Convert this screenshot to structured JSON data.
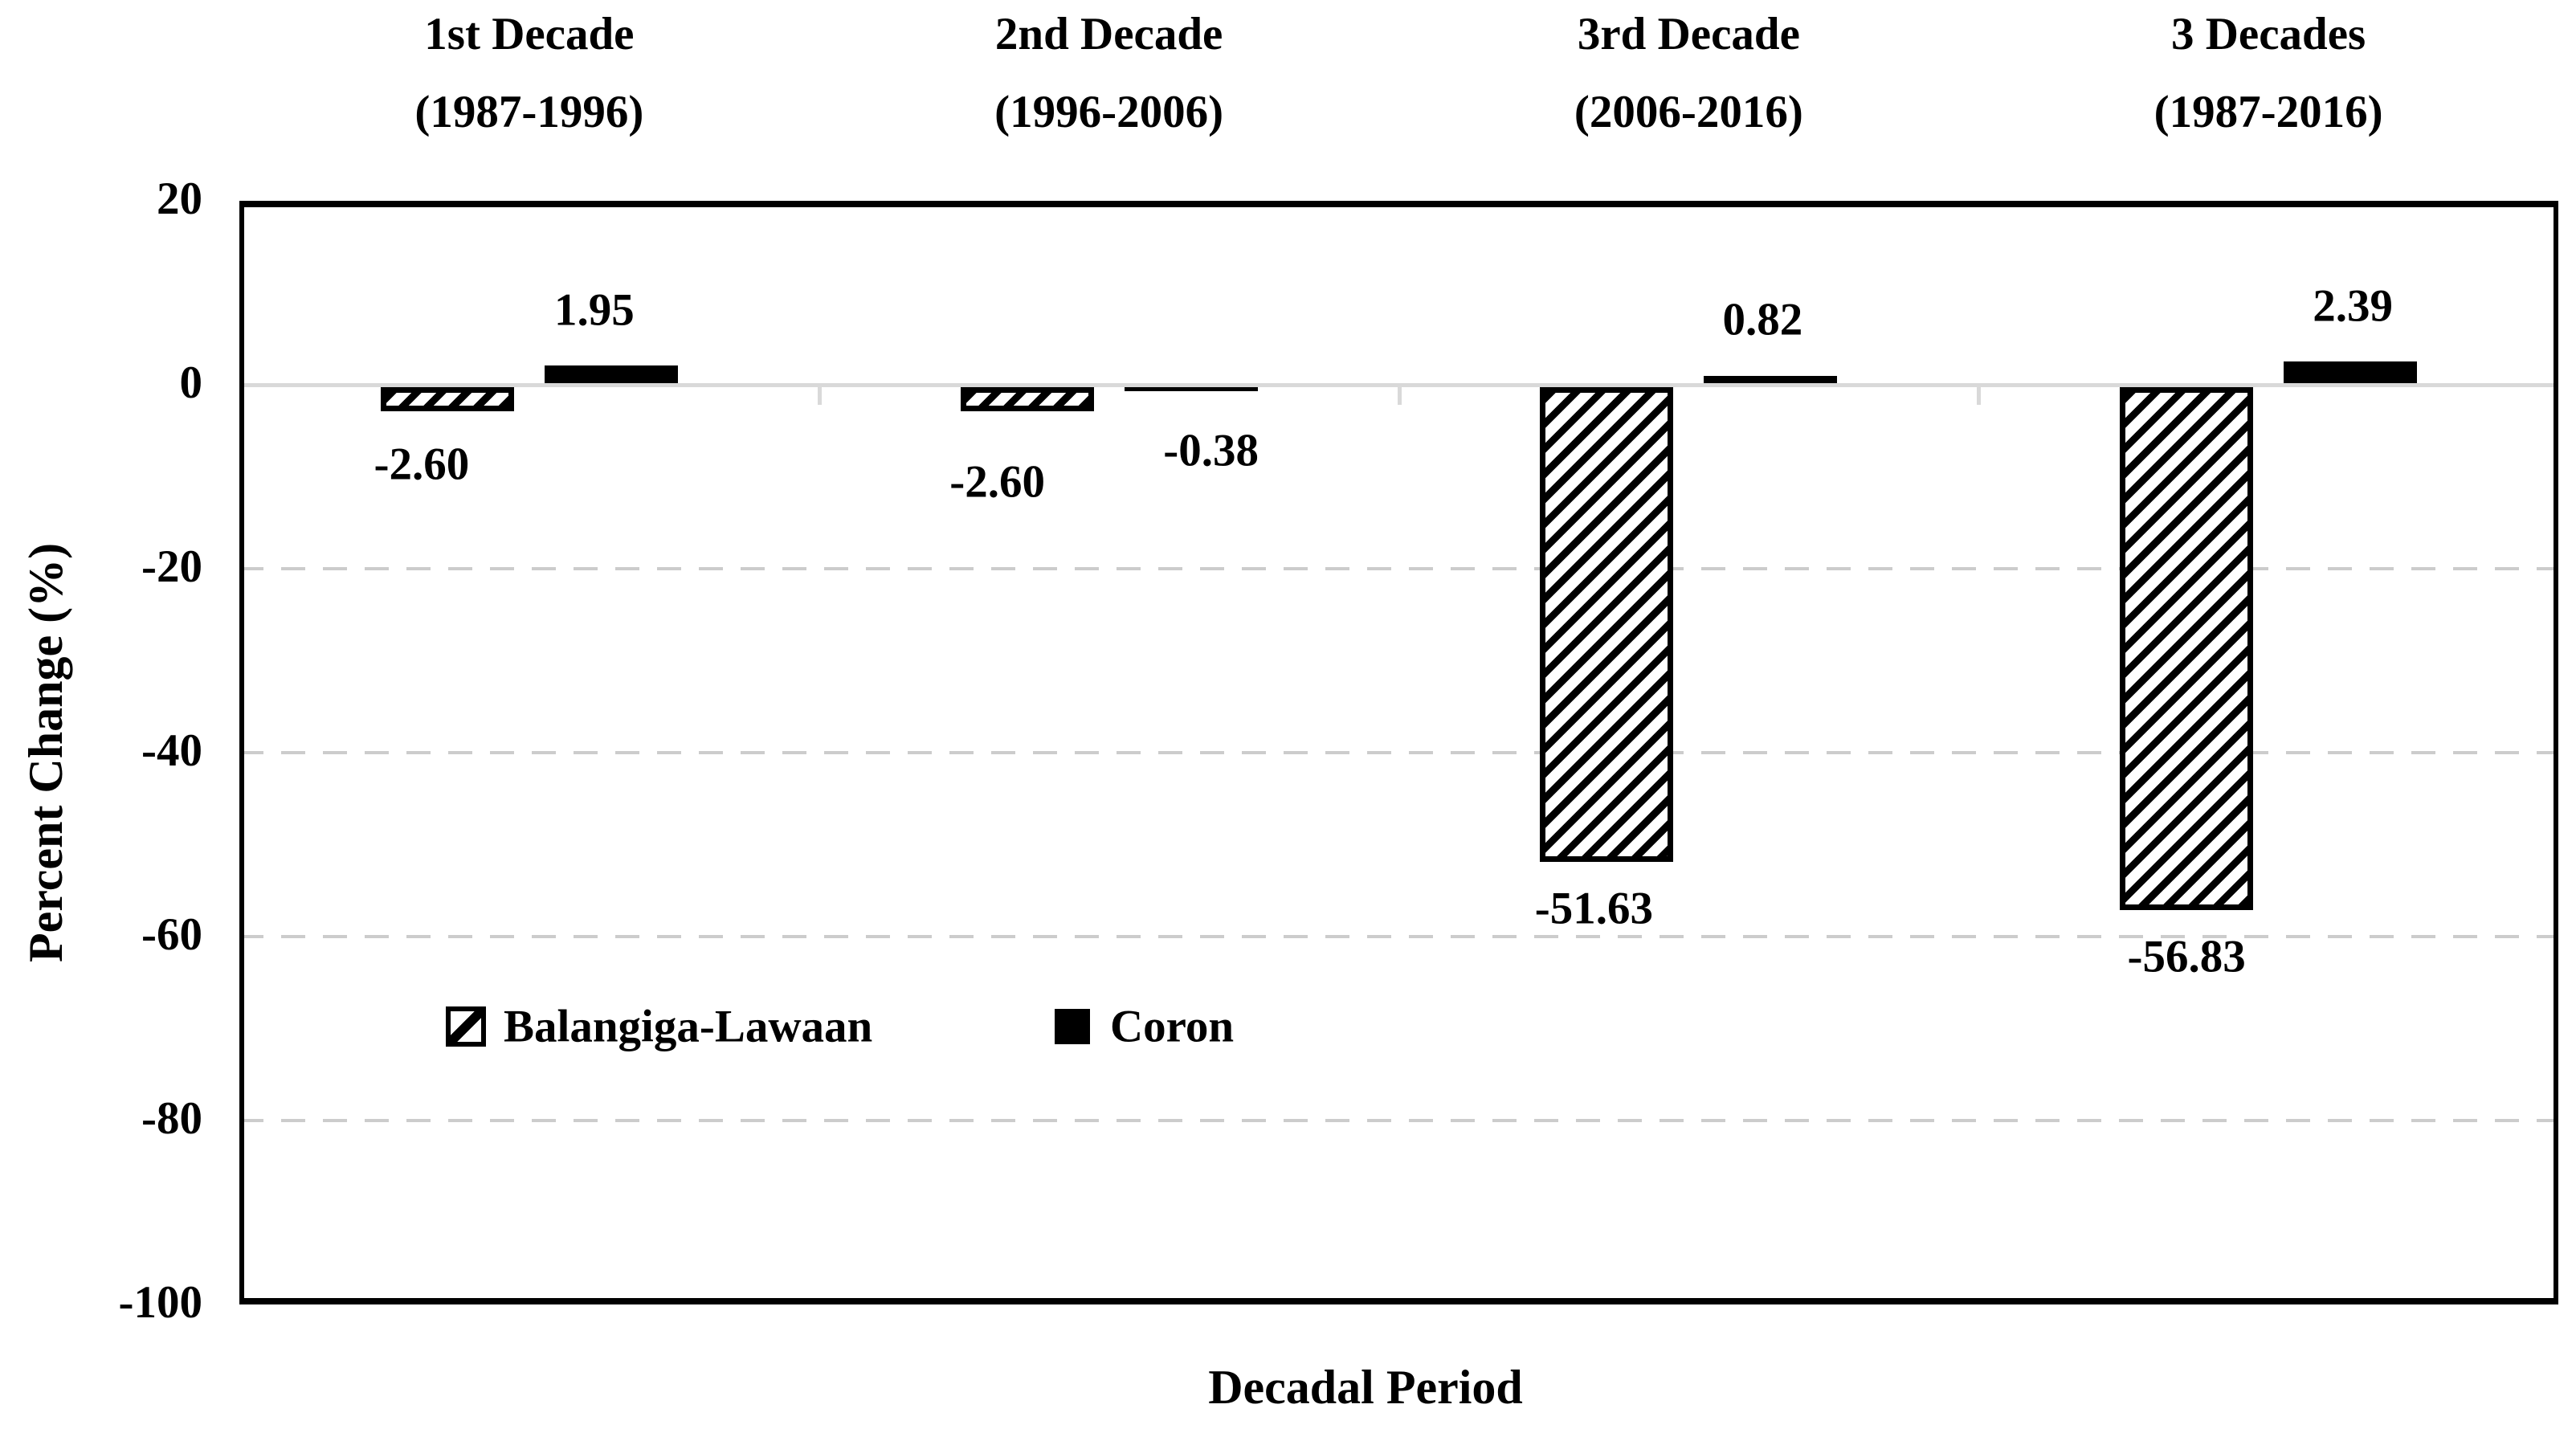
{
  "chart_data": {
    "type": "bar",
    "categories": [
      "1st Decade",
      "2nd Decade",
      "3rd Decade",
      "3 Decades"
    ],
    "category_sublabels": [
      "(1987-1996)",
      "(1996-2006)",
      "(2006-2016)",
      "(1987-2016)"
    ],
    "series": [
      {
        "name": "Balangiga-Lawaan",
        "style": "hatched",
        "values": [
          -2.6,
          -2.6,
          -51.63,
          -56.83
        ],
        "labels": [
          "-2.60",
          "-2.60",
          "-51.63",
          "-56.83"
        ]
      },
      {
        "name": "Coron",
        "style": "solid-black",
        "values": [
          1.95,
          -0.38,
          0.82,
          2.39
        ],
        "labels": [
          "1.95",
          "-0.38",
          "0.82",
          "2.39"
        ]
      }
    ],
    "xlabel": "Decadal Period",
    "ylabel": "Percent Change (%)",
    "ylim": [
      -100,
      20
    ],
    "ytick_step": 20,
    "yticks": [
      "20",
      "0",
      "-20",
      "-40",
      "-60",
      "-80",
      "-100"
    ],
    "grid": "dashed horizontal gridlines at -20,-40,-60,-80; solid light line at 0",
    "legend_position": "inside plot, lower-left"
  },
  "colors": {
    "bar": "#000000",
    "text": "#000000",
    "gridline": "#cccccc",
    "zero_line": "#d9d9d9",
    "background": "#ffffff"
  }
}
